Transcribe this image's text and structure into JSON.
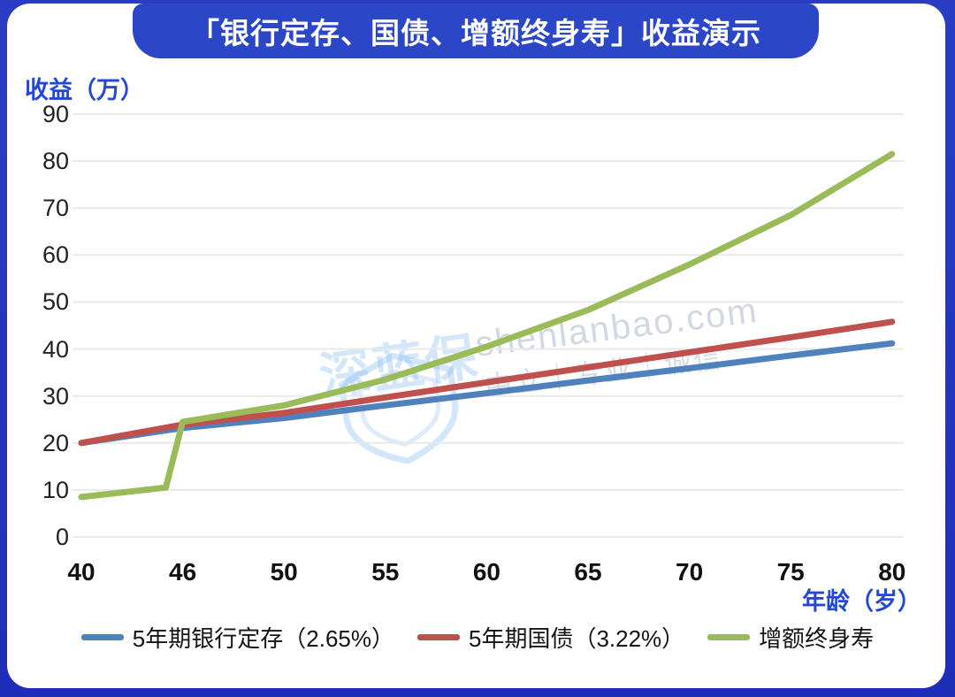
{
  "title": "「银行定存、国债、增额终身寿」收益演示",
  "colors": {
    "frame_background": "#2231bd",
    "banner_background": "#2b46c6",
    "axis_label_blue": "#2448d6",
    "grid": "#e9e9e9",
    "tick_text": "#1f1f1f",
    "series_bank": "#4f81bd",
    "series_bond": "#c0504d",
    "series_insurance": "#9bbb59"
  },
  "watermark": {
    "logo_text": "深蓝保",
    "url": "shenlanbao.com",
    "slogan": "中立｜专业｜诚信"
  },
  "chart_data": {
    "type": "line",
    "title": "「银行定存、国债、增额终身寿」收益演示",
    "xlabel": "年龄（岁）",
    "ylabel": "收益（万）",
    "x_tick_labels": [
      "40",
      "46",
      "50",
      "55",
      "60",
      "65",
      "70",
      "75",
      "80"
    ],
    "x_tick_ages": [
      40,
      46,
      50,
      55,
      60,
      65,
      70,
      75,
      80
    ],
    "y_ticks": [
      0,
      10,
      20,
      30,
      40,
      50,
      60,
      70,
      80,
      90
    ],
    "ylim": [
      0,
      90
    ],
    "grid": "horizontal-only",
    "legend_position": "bottom",
    "series": [
      {
        "id": "bank-deposit",
        "name": "5年期银行定存（2.65%）",
        "color": "#4f81bd",
        "points": [
          [
            40,
            20
          ],
          [
            46,
            23.2
          ],
          [
            50,
            25.3
          ],
          [
            55,
            28.0
          ],
          [
            60,
            30.6
          ],
          [
            65,
            33.3
          ],
          [
            70,
            35.9
          ],
          [
            75,
            38.6
          ],
          [
            80,
            41.2
          ]
        ]
      },
      {
        "id": "treasury-bond",
        "name": "5年期国债（3.22%）",
        "color": "#c0504d",
        "points": [
          [
            40,
            20
          ],
          [
            46,
            23.9
          ],
          [
            50,
            26.4
          ],
          [
            55,
            29.7
          ],
          [
            60,
            32.9
          ],
          [
            65,
            36.1
          ],
          [
            70,
            39.3
          ],
          [
            75,
            42.5
          ],
          [
            80,
            45.8
          ]
        ]
      },
      {
        "id": "increasing-whole-life",
        "name": "增额终身寿",
        "color": "#9bbb59",
        "points": [
          [
            40,
            8.5
          ],
          [
            45,
            10.5
          ],
          [
            46,
            24.5
          ],
          [
            50,
            28
          ],
          [
            55,
            33.5
          ],
          [
            60,
            40.5
          ],
          [
            65,
            48.3
          ],
          [
            70,
            58
          ],
          [
            75,
            68.5
          ],
          [
            80,
            81.5
          ]
        ]
      }
    ]
  }
}
